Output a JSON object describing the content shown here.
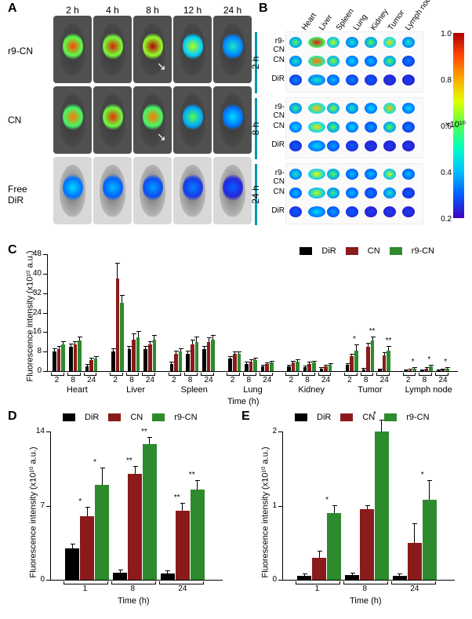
{
  "panels": {
    "A": "A",
    "B": "B",
    "C": "C",
    "D": "D",
    "E": "E"
  },
  "panelA": {
    "timepoints": [
      "2 h",
      "4 h",
      "8 h",
      "12 h",
      "24 h"
    ],
    "treatments": [
      "r9-CN",
      "CN",
      "Free\nDiR"
    ],
    "row_bg_dark": [
      true,
      true,
      false
    ],
    "heat_intensity": [
      [
        0.85,
        0.9,
        0.95,
        0.55,
        0.35
      ],
      [
        0.8,
        0.88,
        0.8,
        0.45,
        0.3
      ],
      [
        0.3,
        0.25,
        0.2,
        0.15,
        0.1
      ]
    ]
  },
  "panelB": {
    "organs": [
      "Heart",
      "Liver",
      "Spleen",
      "Lung",
      "Kidney",
      "Tumor",
      "Lymph node"
    ],
    "timepoints": [
      "2 h",
      "8 h",
      "24 h"
    ],
    "treatments": [
      "r9-CN",
      "CN",
      "DiR"
    ],
    "colorbar": {
      "ticks": [
        "1.0",
        "0.8",
        "0.6",
        "0.4",
        "0.2"
      ],
      "exp_label": "×10¹⁰"
    },
    "organ_colors": [
      [
        [
          0.5,
          0.95,
          0.6,
          0.4,
          0.5,
          0.7,
          0.4
        ],
        [
          0.4,
          0.85,
          0.55,
          0.35,
          0.3,
          0.5,
          0.2
        ],
        [
          0.2,
          0.4,
          0.3,
          0.2,
          0.15,
          0.1,
          0.1
        ]
      ],
      [
        [
          0.45,
          0.75,
          0.55,
          0.4,
          0.35,
          0.75,
          0.35
        ],
        [
          0.35,
          0.7,
          0.5,
          0.35,
          0.25,
          0.5,
          0.2
        ],
        [
          0.15,
          0.35,
          0.25,
          0.15,
          0.1,
          0.1,
          0.1
        ]
      ],
      [
        [
          0.4,
          0.65,
          0.5,
          0.3,
          0.3,
          0.6,
          0.3
        ],
        [
          0.3,
          0.6,
          0.45,
          0.3,
          0.2,
          0.4,
          0.15
        ],
        [
          0.15,
          0.35,
          0.25,
          0.15,
          0.1,
          0.1,
          0.1
        ]
      ]
    ]
  },
  "colors": {
    "DiR": "#000000",
    "CN": "#8b1a1a",
    "r9-CN": "#2d8b2d"
  },
  "legend_keys": [
    "DiR",
    "CN",
    "r9-CN"
  ],
  "panelC": {
    "y_label": "Fluorescence intensity (x10¹⁰ a.u.)",
    "x_label": "Time (h)",
    "ylim": [
      0,
      48
    ],
    "ytick_step": 8,
    "x_timepoints": [
      "2",
      "8",
      "24"
    ],
    "organs": [
      "Heart",
      "Liver",
      "Spleen",
      "Lung",
      "Kidney",
      "Tumor",
      "Lymph node"
    ],
    "values": {
      "Heart": {
        "DiR": [
          8,
          10,
          2
        ],
        "CN": [
          9,
          11,
          4.5
        ],
        "r9-CN": [
          11,
          12.5,
          5
        ]
      },
      "Liver": {
        "DiR": [
          8,
          9,
          9
        ],
        "CN": [
          38,
          13,
          11
        ],
        "r9-CN": [
          28,
          14,
          13
        ]
      },
      "Spleen": {
        "DiR": [
          3,
          7,
          9
        ],
        "CN": [
          7,
          11,
          12
        ],
        "r9-CN": [
          8,
          12,
          13
        ]
      },
      "Lung": {
        "DiR": [
          5,
          3,
          2
        ],
        "CN": [
          7,
          4,
          3
        ],
        "r9-CN": [
          7,
          4.5,
          3.5
        ]
      },
      "Kidney": {
        "DiR": [
          2,
          1.5,
          1
        ],
        "CN": [
          3.5,
          3,
          2
        ],
        "r9-CN": [
          4,
          3.5,
          2.5
        ]
      },
      "Tumor": {
        "DiR": [
          2.5,
          0.7,
          0.5
        ],
        "CN": [
          6,
          10,
          6.5
        ],
        "r9-CN": [
          8.5,
          12.5,
          8.5
        ]
      },
      "Lymph node": {
        "DiR": [
          0.3,
          0.3,
          0.3
        ],
        "CN": [
          0.4,
          1,
          0.5
        ],
        "r9-CN": [
          1,
          2,
          1.1
        ]
      }
    },
    "errors": {
      "Heart": {
        "DiR": [
          1,
          1,
          0.5
        ],
        "CN": [
          1,
          1,
          0.5
        ],
        "r9-CN": [
          1,
          1.2,
          0.7
        ]
      },
      "Liver": {
        "DiR": [
          1,
          1,
          1
        ],
        "CN": [
          6,
          2,
          1
        ],
        "r9-CN": [
          3,
          2,
          1.5
        ]
      },
      "Spleen": {
        "DiR": [
          0.5,
          1,
          1
        ],
        "CN": [
          1,
          1.5,
          1.5
        ],
        "r9-CN": [
          1,
          2,
          1.5
        ]
      },
      "Lung": {
        "DiR": [
          0.7,
          0.5,
          0.3
        ],
        "CN": [
          0.7,
          0.5,
          0.3
        ],
        "r9-CN": [
          0.7,
          0.5,
          0.3
        ]
      },
      "Kidney": {
        "DiR": [
          0.3,
          0.3,
          0.2
        ],
        "CN": [
          0.4,
          0.4,
          0.3
        ],
        "r9-CN": [
          0.4,
          0.4,
          0.3
        ]
      },
      "Tumor": {
        "DiR": [
          0.5,
          0.2,
          0.2
        ],
        "CN": [
          0.8,
          1.2,
          0.8
        ],
        "r9-CN": [
          2,
          1.5,
          1.5
        ]
      },
      "Lymph node": {
        "DiR": [
          0.1,
          0.1,
          0.1
        ],
        "CN": [
          0.1,
          0.2,
          0.1
        ],
        "r9-CN": [
          0.2,
          0.3,
          0.2
        ]
      }
    },
    "stars": {
      "Tumor": {
        "r9-CN": [
          "*",
          "**",
          "**"
        ],
        "CN": [
          "",
          "",
          ""
        ]
      },
      "Lymph node": {
        "r9-CN": [
          "*",
          "*",
          "*"
        ]
      }
    }
  },
  "panelD": {
    "y_label": "Fluorescence intensity (x10¹⁰ a.u.)",
    "x_label": "Time (h)",
    "ylim": [
      0,
      14
    ],
    "yticks": [
      0,
      7,
      14
    ],
    "timepoints": [
      "1",
      "8",
      "24"
    ],
    "values": {
      "DiR": [
        3,
        0.7,
        0.6
      ],
      "CN": [
        6,
        10,
        6.5
      ],
      "r9-CN": [
        9,
        12.8,
        8.5
      ]
    },
    "errors": {
      "DiR": [
        0.3,
        0.2,
        0.2
      ],
      "CN": [
        0.8,
        0.7,
        0.7
      ],
      "r9-CN": [
        1.5,
        0.6,
        0.8
      ]
    },
    "stars": {
      "CN": [
        "*",
        "**",
        "**"
      ],
      "r9-CN": [
        "*",
        "**",
        "**"
      ]
    }
  },
  "panelE": {
    "y_label": "Fluorescence intensity (x10¹⁰ a.u.)",
    "x_label": "Time (h)",
    "ylim": [
      0,
      2
    ],
    "yticks": [
      0,
      1,
      2
    ],
    "timepoints": [
      "1",
      "8",
      "24"
    ],
    "values": {
      "DiR": [
        0.05,
        0.06,
        0.05
      ],
      "CN": [
        0.3,
        0.95,
        0.5
      ],
      "r9-CN": [
        0.9,
        2.0,
        1.08
      ]
    },
    "errors": {
      "DiR": [
        0.02,
        0.02,
        0.02
      ],
      "CN": [
        0.08,
        0.05,
        0.25
      ],
      "r9-CN": [
        0.1,
        0.15,
        0.25
      ]
    },
    "stars": {
      "r9-CN": [
        "*",
        "*",
        "*"
      ]
    }
  }
}
